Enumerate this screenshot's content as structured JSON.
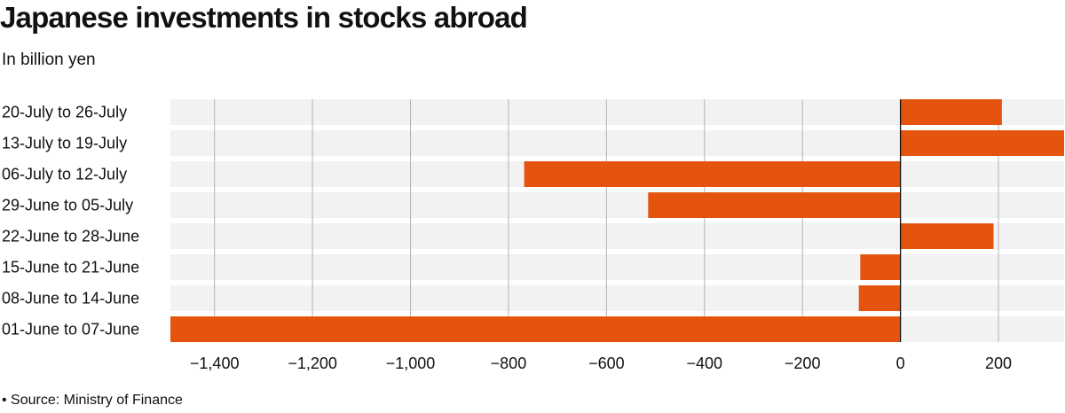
{
  "title": "Japanese investments in stocks abroad",
  "subtitle": "In billion yen",
  "source": "• Source: Ministry of Finance",
  "colors": {
    "bar": "#e5540f",
    "band": "#f2f2f2",
    "grid": "#b3b3b3",
    "zero_line": "#111111"
  },
  "chart_data": {
    "type": "bar",
    "orientation": "horizontal",
    "title": "Japanese investments in stocks abroad",
    "subtitle": "In billion yen",
    "categories": [
      "20-July to 26-July",
      "13-July to 19-July",
      "06-July to 12-July",
      "29-June to 05-July",
      "22-June to 28-June",
      "15-June to 21-June",
      "08-June to 14-June",
      "01-June to 07-June"
    ],
    "values": [
      207,
      334,
      -768,
      -515,
      190,
      -82,
      -85,
      -1490
    ],
    "xlim": [
      -1490,
      334
    ],
    "xticks": [
      -1400,
      -1200,
      -1000,
      -800,
      -600,
      -400,
      -200,
      0,
      200
    ],
    "xtick_labels": [
      "−1,400",
      "−1,200",
      "−1,000",
      "−800",
      "−600",
      "−400",
      "−200",
      "0",
      "200"
    ],
    "grid": true,
    "legend": "none"
  }
}
